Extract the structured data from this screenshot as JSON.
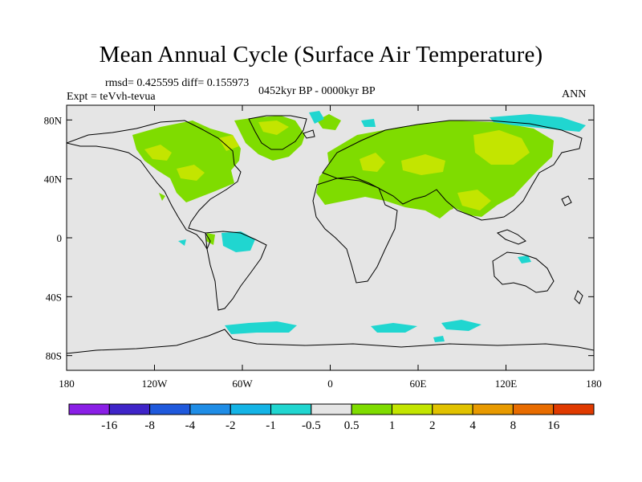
{
  "title": "Mean Annual Cycle (Surface Air Temperature)",
  "stats": "rmsd= 0.425595 diff= 0.155973",
  "experiment": "Expt = teVvh-tevua",
  "period": "0452kyr BP - 0000kyr BP",
  "season": "ANN",
  "map": {
    "lon_range": [
      -180,
      180
    ],
    "lat_range": [
      -90,
      90
    ],
    "background_color": "#e5e5e5",
    "coastline_color": "#000000",
    "lat_ticks": [
      {
        "value": 80,
        "label": "80N"
      },
      {
        "value": 40,
        "label": "40N"
      },
      {
        "value": 0,
        "label": "0"
      },
      {
        "value": -40,
        "label": "40S"
      },
      {
        "value": -80,
        "label": "80S"
      }
    ],
    "lon_ticks": [
      {
        "value": -180,
        "label": "180"
      },
      {
        "value": -120,
        "label": "120W"
      },
      {
        "value": -60,
        "label": "60W"
      },
      {
        "value": 0,
        "label": "0"
      },
      {
        "value": 60,
        "label": "60E"
      },
      {
        "value": 120,
        "label": "120E"
      },
      {
        "value": 180,
        "label": "180"
      }
    ]
  },
  "colorbar": {
    "colors": [
      "#8a1fe6",
      "#3f24c8",
      "#1f59dc",
      "#1f8de6",
      "#14b4e6",
      "#20d6d0",
      "#e5e5e5",
      "#7fdc00",
      "#c3e500",
      "#e1c200",
      "#e89a00",
      "#e86c00",
      "#e03a00"
    ],
    "labels": [
      "-16",
      "-8",
      "-4",
      "-2",
      "-1",
      "-0.5",
      "0.5",
      "1",
      "2",
      "4",
      "8",
      "16"
    ]
  }
}
